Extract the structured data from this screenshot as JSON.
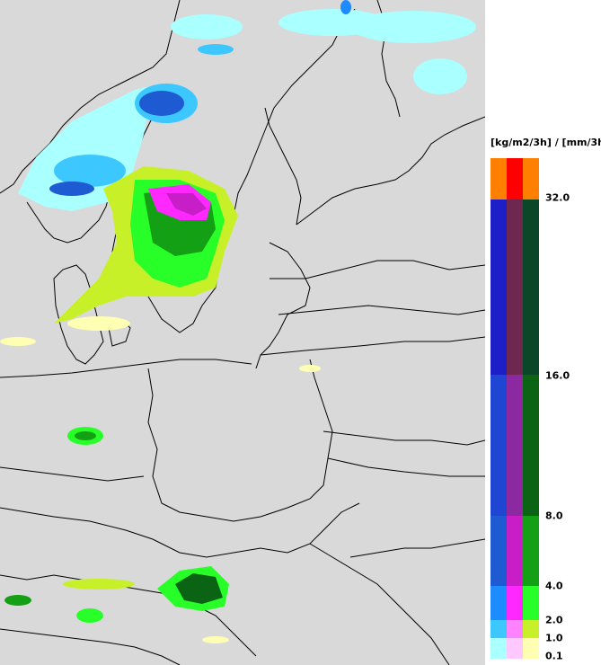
{
  "legend": {
    "title": "[kg/m2/3h] / [mm/3h]",
    "ticks": [
      "32.0",
      "16.0",
      "8.0",
      "4.0",
      "2.0",
      "1.0",
      "0.1"
    ],
    "rows": [
      {
        "colors": [
          "#ff8000",
          "#ff0000",
          "#ff8000"
        ]
      },
      {
        "colors": [
          "#1e1ec8",
          "#6e2850",
          "#0a4628"
        ]
      },
      {
        "colors": [
          "#1e46d2",
          "#8c28a0",
          "#0a6414"
        ]
      },
      {
        "colors": [
          "#1e5ad2",
          "#c81ec8",
          "#14a014"
        ]
      },
      {
        "colors": [
          "#1e8cff",
          "#ff28ff",
          "#28ff28"
        ]
      },
      {
        "colors": [
          "#3cc8ff",
          "#ff82ff",
          "#c8f028"
        ]
      },
      {
        "colors": [
          "#aaffff",
          "#ffc8ff",
          "#ffffb4"
        ]
      }
    ]
  },
  "map": {
    "background": "#d9d9d9",
    "precip_zones": [
      {
        "name": "southern-norway-snow",
        "color": "#3cc8ff"
      },
      {
        "name": "central-sweden-band",
        "color": "#14a014"
      },
      {
        "name": "stockholm-core",
        "color": "#c81ec8"
      },
      {
        "name": "gotland-band",
        "color": "#28ff28"
      },
      {
        "name": "hungary-cell",
        "color": "#0a6414"
      },
      {
        "name": "northern-lapland-snow",
        "color": "#aaffff"
      }
    ]
  }
}
